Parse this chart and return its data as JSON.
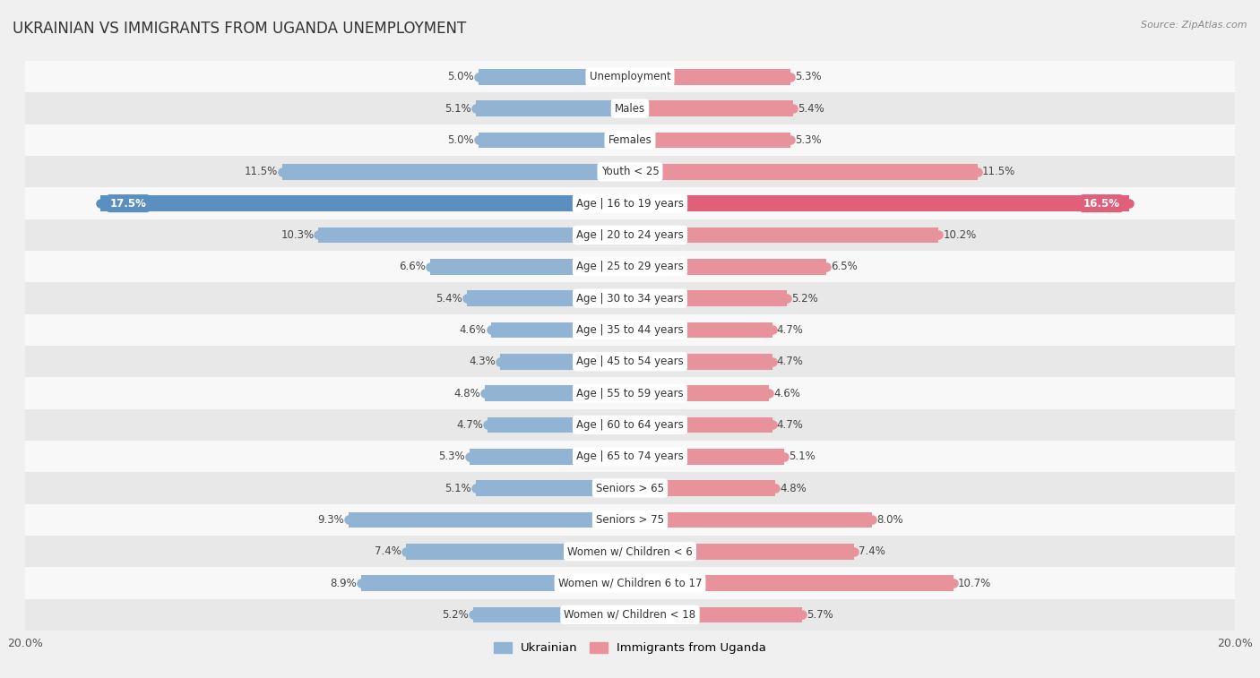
{
  "title": "UKRAINIAN VS IMMIGRANTS FROM UGANDA UNEMPLOYMENT",
  "source": "Source: ZipAtlas.com",
  "categories": [
    "Unemployment",
    "Males",
    "Females",
    "Youth < 25",
    "Age | 16 to 19 years",
    "Age | 20 to 24 years",
    "Age | 25 to 29 years",
    "Age | 30 to 34 years",
    "Age | 35 to 44 years",
    "Age | 45 to 54 years",
    "Age | 55 to 59 years",
    "Age | 60 to 64 years",
    "Age | 65 to 74 years",
    "Seniors > 65",
    "Seniors > 75",
    "Women w/ Children < 6",
    "Women w/ Children 6 to 17",
    "Women w/ Children < 18"
  ],
  "ukrainian": [
    5.0,
    5.1,
    5.0,
    11.5,
    17.5,
    10.3,
    6.6,
    5.4,
    4.6,
    4.3,
    4.8,
    4.7,
    5.3,
    5.1,
    9.3,
    7.4,
    8.9,
    5.2
  ],
  "uganda": [
    5.3,
    5.4,
    5.3,
    11.5,
    16.5,
    10.2,
    6.5,
    5.2,
    4.7,
    4.7,
    4.6,
    4.7,
    5.1,
    4.8,
    8.0,
    7.4,
    10.7,
    5.7
  ],
  "ukrainian_color": "#92b4d4",
  "uganda_color": "#e8929c",
  "ukrainian_highlight": "#5b8fc0",
  "uganda_highlight": "#e0607a",
  "ukrainian_label": "Ukrainian",
  "uganda_label": "Immigrants from Uganda",
  "axis_max": 20.0,
  "background_color": "#f0f0f0",
  "row_color_odd": "#e8e8e8",
  "row_color_even": "#f8f8f8",
  "bar_height": 0.5,
  "title_fontsize": 12,
  "label_fontsize": 8.5,
  "value_fontsize": 8.5,
  "highlight_rows": [
    4
  ]
}
